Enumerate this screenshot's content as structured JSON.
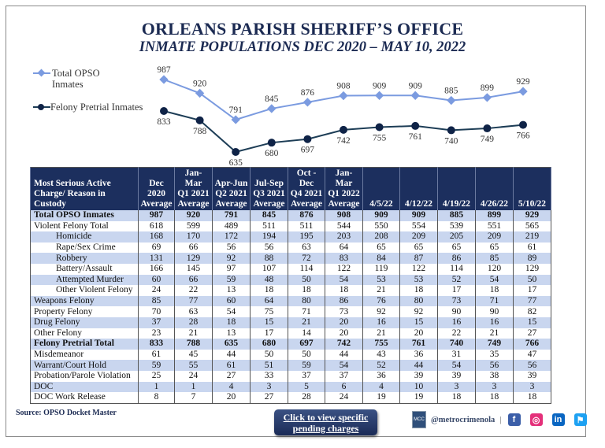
{
  "header": {
    "title": "ORLEANS PARISH SHERIFF’S OFFICE",
    "subtitle": "INMATE POPULATIONS DEC 2020 – MAY 10, 2022"
  },
  "chart_data": {
    "type": "line",
    "title": "ORLEANS PARISH SHERIFF’S OFFICE – INMATE POPULATIONS DEC 2020 – MAY 10, 2022",
    "x": [
      "Dec 2020 Average",
      "Jan-Mar Q1 2021 Average",
      "Apr-Jun Q2 2021 Average",
      "Jul-Sep Q3 2021 Average",
      "Oct -Dec Q4 2021 Average",
      "Jan-Mar Q1 2022 Average",
      "4/5/22",
      "4/12/22",
      "4/19/22",
      "4/26/22",
      "5/10/22"
    ],
    "series": [
      {
        "name": "Total OPSO Inmates",
        "marker": "diamond",
        "color": "#7b9be0",
        "values": [
          987,
          920,
          791,
          845,
          876,
          908,
          909,
          909,
          885,
          899,
          929
        ],
        "label_position": "above"
      },
      {
        "name": "Felony Pretrial Inmates",
        "marker": "circle",
        "color": "#0f2347",
        "line_color": "#1d3d56",
        "values": [
          833,
          788,
          635,
          680,
          697,
          742,
          755,
          761,
          740,
          749,
          766
        ],
        "label_position": "below"
      }
    ],
    "xlabel": "",
    "ylabel": "",
    "ylim": [
      620,
      1000
    ],
    "grid": false,
    "axes_visible": false,
    "legend": "left",
    "data_labels": true
  },
  "legend": [
    {
      "line1": "Total OPSO",
      "line2": "Inmates"
    },
    {
      "line1": "Felony Pretrial Inmates",
      "line2": ""
    }
  ],
  "table": {
    "label_header": [
      "Most Serious Active",
      "Charge/ Reason in Custody"
    ],
    "columns": [
      [
        "Dec",
        "2020",
        "Average"
      ],
      [
        "Jan-Mar",
        "Q1 2021",
        "Average"
      ],
      [
        "Apr-Jun",
        "Q2 2021",
        "Average"
      ],
      [
        "Jul-Sep",
        "Q3 2021",
        "Average"
      ],
      [
        "Oct -Dec",
        "Q4 2021",
        "Average"
      ],
      [
        "Jan-Mar",
        "Q1 2022",
        "Average"
      ],
      [
        "",
        "",
        "4/5/22"
      ],
      [
        "",
        "",
        "4/12/22"
      ],
      [
        "",
        "",
        "4/19/22"
      ],
      [
        "",
        "",
        "4/26/22"
      ],
      [
        "",
        "",
        "5/10/22"
      ]
    ],
    "rows": [
      {
        "label": "Total OPSO Inmates",
        "bold": true,
        "indent": false,
        "values": [
          "987",
          "920",
          "791",
          "845",
          "876",
          "908",
          "909",
          "909",
          "885",
          "899",
          "929"
        ]
      },
      {
        "label": "Violent Felony Total",
        "bold": false,
        "indent": false,
        "values": [
          "618",
          "599",
          "489",
          "511",
          "511",
          "544",
          "550",
          "554",
          "539",
          "551",
          "565"
        ]
      },
      {
        "label": "Homicide",
        "bold": false,
        "indent": true,
        "values": [
          "168",
          "170",
          "172",
          "194",
          "195",
          "203",
          "208",
          "209",
          "205",
          "209",
          "219"
        ]
      },
      {
        "label": "Rape/Sex Crime",
        "bold": false,
        "indent": true,
        "values": [
          "69",
          "66",
          "56",
          "56",
          "63",
          "64",
          "65",
          "65",
          "65",
          "65",
          "61"
        ]
      },
      {
        "label": "Robbery",
        "bold": false,
        "indent": true,
        "values": [
          "131",
          "129",
          "92",
          "88",
          "72",
          "83",
          "84",
          "87",
          "86",
          "85",
          "89"
        ]
      },
      {
        "label": "Battery/Assault",
        "bold": false,
        "indent": true,
        "values": [
          "166",
          "145",
          "97",
          "107",
          "114",
          "122",
          "119",
          "122",
          "114",
          "120",
          "129"
        ]
      },
      {
        "label": "Attempted Murder",
        "bold": false,
        "indent": true,
        "values": [
          "60",
          "66",
          "59",
          "48",
          "50",
          "54",
          "53",
          "53",
          "52",
          "54",
          "50"
        ]
      },
      {
        "label": "Other Violent Felony",
        "bold": false,
        "indent": true,
        "values": [
          "24",
          "22",
          "13",
          "18",
          "18",
          "18",
          "21",
          "18",
          "17",
          "18",
          "17"
        ]
      },
      {
        "label": "Weapons Felony",
        "bold": false,
        "indent": false,
        "values": [
          "85",
          "77",
          "60",
          "64",
          "80",
          "86",
          "76",
          "80",
          "73",
          "71",
          "77"
        ]
      },
      {
        "label": "Property Felony",
        "bold": false,
        "indent": false,
        "values": [
          "70",
          "63",
          "54",
          "75",
          "71",
          "73",
          "92",
          "92",
          "90",
          "90",
          "82"
        ]
      },
      {
        "label": "Drug Felony",
        "bold": false,
        "indent": false,
        "values": [
          "37",
          "28",
          "18",
          "15",
          "21",
          "20",
          "16",
          "15",
          "16",
          "16",
          "15"
        ]
      },
      {
        "label": "Other Felony",
        "bold": false,
        "indent": false,
        "values": [
          "23",
          "21",
          "13",
          "17",
          "14",
          "20",
          "21",
          "20",
          "22",
          "21",
          "27"
        ]
      },
      {
        "label": "Felony Pretrial Total",
        "bold": true,
        "indent": false,
        "values": [
          "833",
          "788",
          "635",
          "680",
          "697",
          "742",
          "755",
          "761",
          "740",
          "749",
          "766"
        ]
      },
      {
        "label": "Misdemeanor",
        "bold": false,
        "indent": false,
        "values": [
          "61",
          "45",
          "44",
          "50",
          "50",
          "44",
          "43",
          "36",
          "31",
          "35",
          "47"
        ]
      },
      {
        "label": "Warrant/Court Hold",
        "bold": false,
        "indent": false,
        "values": [
          "59",
          "55",
          "61",
          "51",
          "59",
          "54",
          "52",
          "44",
          "54",
          "56",
          "56"
        ]
      },
      {
        "label": "Probation/Parole Violation",
        "bold": false,
        "indent": false,
        "values": [
          "25",
          "24",
          "27",
          "33",
          "37",
          "37",
          "36",
          "39",
          "39",
          "38",
          "39"
        ]
      },
      {
        "label": "DOC",
        "bold": false,
        "indent": false,
        "values": [
          "1",
          "1",
          "4",
          "3",
          "5",
          "6",
          "4",
          "10",
          "3",
          "3",
          "3"
        ]
      },
      {
        "label": "DOC Work Release",
        "bold": false,
        "indent": false,
        "values": [
          "8",
          "7",
          "20",
          "27",
          "28",
          "24",
          "19",
          "19",
          "18",
          "18",
          "18"
        ]
      }
    ]
  },
  "footer": {
    "source": "Source: OPSO Docket Master",
    "button_line1": "Click to view specific",
    "button_line2": "pending charges",
    "logo_text": "MCC",
    "handle": "@metrocrimenola",
    "separator": "|",
    "social": [
      {
        "name": "facebook",
        "glyph": "f",
        "color": "#3b5ea8"
      },
      {
        "name": "instagram",
        "glyph": "◎",
        "color": "#e4307a"
      },
      {
        "name": "linkedin",
        "glyph": "in",
        "color": "#0a66c2"
      },
      {
        "name": "twitter",
        "glyph": "⚑",
        "color": "#1da1f2"
      }
    ]
  }
}
